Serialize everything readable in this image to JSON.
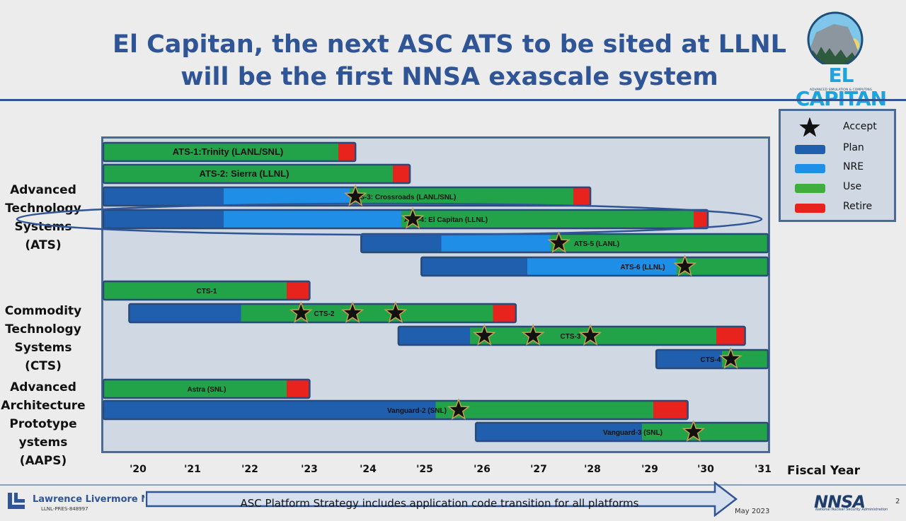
{
  "title": {
    "line1": "El Capitan, the next ASC ATS to be sited at LLNL",
    "line2": "will be the first NNSA exascale system"
  },
  "logo": {
    "word": "EL CAPITAN",
    "sub": "ADVANCED SIMULATION & COMPUTING"
  },
  "categories": [
    {
      "lines": [
        "Advanced",
        "Technology",
        "Systems (ATS)"
      ]
    },
    {
      "lines": [
        "Commodity",
        "Technology",
        "Systems (CTS)"
      ]
    },
    {
      "lines": [
        "Advanced",
        "Architecture",
        "Prototype",
        "ystems (AAPS)"
      ]
    }
  ],
  "legend": [
    {
      "label": "Accept",
      "kind": "star"
    },
    {
      "label": "Plan",
      "color": "#1f5fae"
    },
    {
      "label": "NRE",
      "color": "#1e90e8"
    },
    {
      "label": "Use",
      "color": "#3fae3c"
    },
    {
      "label": "Retire",
      "color": "#e8231d"
    }
  ],
  "colors": {
    "plan": "#1f5fae",
    "nre": "#1e8ee6",
    "use": "#22a34a",
    "retire": "#e8231d",
    "star_fill": "#111111",
    "star_stroke": "#c8a24a",
    "highlight_ellipse": "#2f5597"
  },
  "chart_data": {
    "type": "gantt",
    "xlabel": "Fiscal Year",
    "x_ticks": [
      "'20",
      "'21",
      "'22",
      "'23",
      "'24",
      "'25",
      "'26",
      "'27",
      "'28",
      "'29",
      "'30",
      "'31"
    ],
    "xlim": [
      2019.4,
      2031.0
    ],
    "highlight": "ATS-4: El Capitan (LLNL)",
    "bars": [
      {
        "label": "ATS-1:Trinity (LANL/SNL)",
        "group": "ATS",
        "phases": [
          {
            "type": "use",
            "start": 2019.4,
            "end": 2023.5
          },
          {
            "type": "retire",
            "start": 2023.5,
            "end": 2023.8
          }
        ],
        "accept": []
      },
      {
        "label": "ATS-2: Sierra (LLNL)",
        "group": "ATS",
        "phases": [
          {
            "type": "use",
            "start": 2019.4,
            "end": 2024.45
          },
          {
            "type": "retire",
            "start": 2024.45,
            "end": 2024.75
          }
        ],
        "accept": []
      },
      {
        "label": "ATS-3: Crossroads (LANL/SNL)",
        "group": "ATS",
        "phases": [
          {
            "type": "plan",
            "start": 2019.4,
            "end": 2021.5
          },
          {
            "type": "nre",
            "start": 2021.5,
            "end": 2023.7
          },
          {
            "type": "use",
            "start": 2023.7,
            "end": 2027.6
          },
          {
            "type": "retire",
            "start": 2027.6,
            "end": 2027.9
          }
        ],
        "accept": [
          2023.8
        ]
      },
      {
        "label": "ATS-4: El Capitan (LLNL)",
        "group": "ATS",
        "phases": [
          {
            "type": "plan",
            "start": 2019.4,
            "end": 2021.5
          },
          {
            "type": "nre",
            "start": 2021.5,
            "end": 2024.6
          },
          {
            "type": "use",
            "start": 2024.6,
            "end": 2029.7
          },
          {
            "type": "retire",
            "start": 2029.7,
            "end": 2029.95
          }
        ],
        "accept": [
          2024.8
        ]
      },
      {
        "label": "ATS-5 (LANL)",
        "group": "ATS",
        "phases": [
          {
            "type": "plan",
            "start": 2023.9,
            "end": 2025.3
          },
          {
            "type": "nre",
            "start": 2025.3,
            "end": 2027.2
          },
          {
            "type": "use",
            "start": 2027.2,
            "end": 2031.0
          }
        ],
        "accept": [
          2027.35
        ]
      },
      {
        "label": "ATS-6 (LLNL)",
        "group": "ATS",
        "phases": [
          {
            "type": "plan",
            "start": 2024.95,
            "end": 2026.8
          },
          {
            "type": "nre",
            "start": 2026.8,
            "end": 2029.4
          },
          {
            "type": "use",
            "start": 2029.4,
            "end": 2031.0
          }
        ],
        "accept": [
          2029.55
        ]
      },
      {
        "label": "CTS-1",
        "group": "CTS",
        "phases": [
          {
            "type": "use",
            "start": 2019.4,
            "end": 2022.6
          },
          {
            "type": "retire",
            "start": 2022.6,
            "end": 2023.0
          }
        ],
        "accept": []
      },
      {
        "label": "CTS-2",
        "group": "CTS",
        "phases": [
          {
            "type": "plan",
            "start": 2019.85,
            "end": 2021.8
          },
          {
            "type": "use",
            "start": 2021.8,
            "end": 2026.2
          },
          {
            "type": "retire",
            "start": 2026.2,
            "end": 2026.6
          }
        ],
        "accept": [
          2022.85,
          2023.75,
          2024.5
        ]
      },
      {
        "label": "CTS-3",
        "group": "CTS",
        "phases": [
          {
            "type": "plan",
            "start": 2024.55,
            "end": 2025.8
          },
          {
            "type": "use",
            "start": 2025.8,
            "end": 2030.1
          },
          {
            "type": "retire",
            "start": 2030.1,
            "end": 2030.6
          }
        ],
        "accept": [
          2026.05,
          2026.9,
          2027.9
        ]
      },
      {
        "label": "CTS-4",
        "group": "CTS",
        "phases": [
          {
            "type": "plan",
            "start": 2029.05,
            "end": 2030.2
          },
          {
            "type": "use",
            "start": 2030.2,
            "end": 2031.0
          }
        ],
        "accept": [
          2030.35
        ]
      },
      {
        "label": "Astra (SNL)",
        "group": "AAPS",
        "phases": [
          {
            "type": "use",
            "start": 2019.4,
            "end": 2022.6
          },
          {
            "type": "retire",
            "start": 2022.6,
            "end": 2023.0
          }
        ],
        "accept": []
      },
      {
        "label": "Vanguard-2 (SNL)",
        "group": "AAPS",
        "phases": [
          {
            "type": "plan",
            "start": 2019.4,
            "end": 2025.2
          },
          {
            "type": "use",
            "start": 2025.2,
            "end": 2029.0
          },
          {
            "type": "retire",
            "start": 2029.0,
            "end": 2029.6
          }
        ],
        "accept": [
          2025.6
        ]
      },
      {
        "label": "Vanguard-3 (SNL)",
        "group": "AAPS",
        "phases": [
          {
            "type": "plan",
            "start": 2025.9,
            "end": 2028.8
          },
          {
            "type": "use",
            "start": 2028.8,
            "end": 2031.0
          }
        ],
        "accept": [
          2029.7
        ]
      }
    ]
  },
  "footer": {
    "lab_name": "Lawrence Livermore National Laboratory",
    "doc_id": "LLNL-PRES-848997",
    "arrow_text": "ASC Platform Strategy includes application code transition for all platforms",
    "date": "May 2023",
    "agency": "NNSA",
    "agency_sub": "National Nuclear Security Administration",
    "page": "2"
  }
}
